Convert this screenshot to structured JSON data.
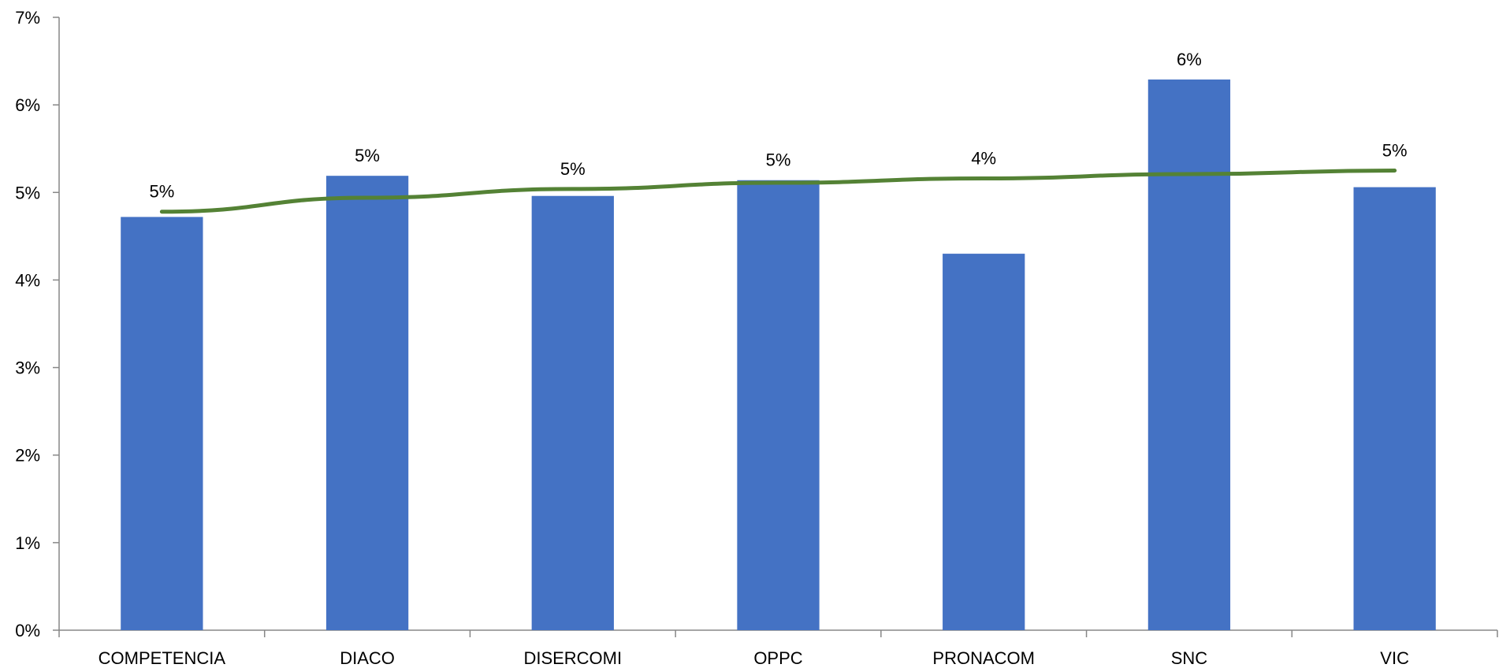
{
  "chart_data": {
    "type": "bar",
    "title": "",
    "xlabel": "",
    "ylabel": "",
    "categories": [
      "COMPETENCIA",
      "DIACO",
      "DISERCOMI",
      "OPPC",
      "PRONACOM",
      "SNC",
      "VIC"
    ],
    "series": [
      {
        "type": "bar",
        "values": [
          4.72,
          5.19,
          4.96,
          5.14,
          4.3,
          6.29,
          5.06
        ],
        "data_labels": [
          "5%",
          "5%",
          "5%",
          "5%",
          "4%",
          "6%",
          "5%"
        ],
        "color": "#4472C4"
      },
      {
        "type": "line",
        "values": [
          4.78,
          4.94,
          5.04,
          5.11,
          5.16,
          5.21,
          5.25
        ],
        "color": "#548235"
      }
    ],
    "ylim": [
      0,
      7
    ],
    "yticks": [
      0,
      1,
      2,
      3,
      4,
      5,
      6,
      7
    ],
    "ytick_labels": [
      "0%",
      "1%",
      "2%",
      "3%",
      "4%",
      "5%",
      "6%",
      "7%"
    ],
    "grid": false,
    "legend": "none"
  }
}
